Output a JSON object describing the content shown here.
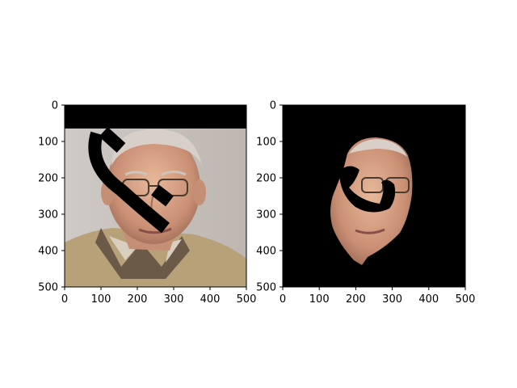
{
  "chart_data": [
    {
      "type": "image",
      "xlim": [
        0,
        500
      ],
      "ylim": [
        500,
        0
      ],
      "x_ticks": [
        0,
        100,
        200,
        300,
        400,
        500
      ],
      "y_ticks": [
        0,
        100,
        200,
        300,
        400,
        500
      ],
      "x_tick_labels": [
        "0",
        "100",
        "200",
        "300",
        "400",
        "500"
      ],
      "y_tick_labels": [
        "0",
        "100",
        "200",
        "300",
        "400",
        "500"
      ]
    },
    {
      "type": "image",
      "xlim": [
        0,
        500
      ],
      "ylim": [
        500,
        0
      ],
      "x_ticks": [
        0,
        100,
        200,
        300,
        400,
        500
      ],
      "y_ticks": [
        0,
        100,
        200,
        300,
        400,
        500
      ],
      "x_tick_labels": [
        "0",
        "100",
        "200",
        "300",
        "400",
        "500"
      ],
      "y_tick_labels": [
        "0",
        "100",
        "200",
        "300",
        "400",
        "500"
      ]
    }
  ]
}
